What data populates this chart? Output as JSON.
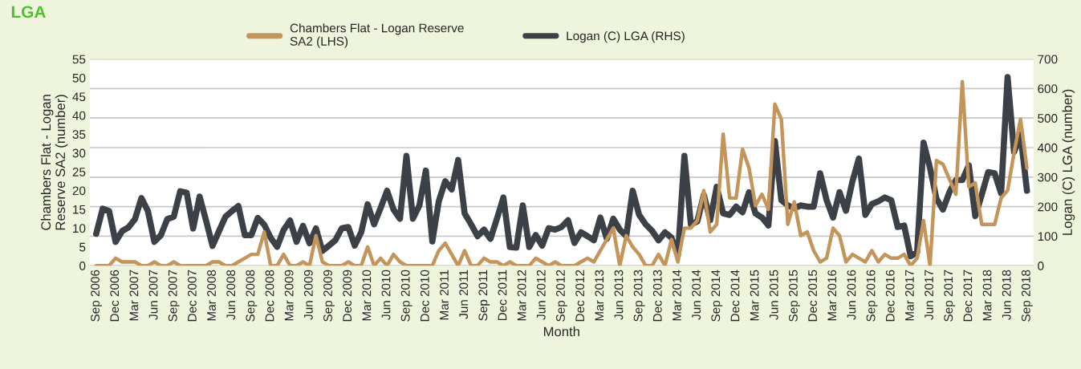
{
  "chart_data": {
    "type": "line",
    "title": "LGA",
    "xlabel": "Month",
    "ylabel": "Chambers Flat - Logan\nReserve SA2 (number)",
    "y2label": "Logan (C) LGA (number)",
    "categories": [
      "Sep 2006",
      null,
      null,
      "Dec 2006",
      null,
      null,
      "Mar 2007",
      null,
      null,
      "Jun 2007",
      null,
      null,
      "Sep 2007",
      null,
      null,
      "Dec 2007",
      null,
      null,
      "Mar 2008",
      null,
      null,
      "Jun 2008",
      null,
      null,
      "Sep 2008",
      null,
      null,
      "Dec 2008",
      null,
      null,
      "Mar 2009",
      null,
      null,
      "Jun 2009",
      null,
      null,
      "Sep 2009",
      null,
      null,
      "Dec 2009",
      null,
      null,
      "Mar 2010",
      null,
      null,
      "Jun 2010",
      null,
      null,
      "Sep 2010",
      null,
      null,
      "Dec 2010",
      null,
      null,
      "Mar 2011",
      null,
      null,
      "Jun 2011",
      null,
      null,
      "Sep 2011",
      null,
      null,
      "Dec 2011",
      null,
      null,
      "Mar 2012",
      null,
      null,
      "Jun 2012",
      null,
      null,
      "Sep 2012",
      null,
      null,
      "Dec 2012",
      null,
      null,
      "Mar 2013",
      null,
      null,
      "Jun 2013",
      null,
      null,
      "Sep 2013",
      null,
      null,
      "Dec 2013",
      null,
      null,
      "Mar 2014",
      null,
      null,
      "Jun 2014",
      null,
      null,
      "Sep 2014",
      null,
      null,
      "Dec 2014",
      null,
      null,
      "Mar 2015",
      null,
      null,
      "Jun 2015",
      null,
      null,
      "Sep 2015",
      null,
      null,
      "Dec 2015",
      null,
      null,
      "Mar 2016",
      null,
      null,
      "Jun 2016",
      null,
      null,
      "Sep 2016",
      null,
      null,
      "Dec 2016",
      null,
      null,
      "Mar 2017",
      null,
      null,
      "Jun 2017",
      null,
      null,
      "Sep 2017",
      null,
      null,
      "Dec 2017",
      null,
      null,
      "Mar 2018",
      null,
      null,
      "Jun 2018",
      null,
      null,
      "Sep 2018"
    ],
    "series": [
      {
        "name": "Chambers Flat - Logan Reserve\nSA2 (LHS)",
        "color": "#c4955a",
        "values": [
          0,
          0,
          0,
          2,
          1,
          1,
          1,
          0,
          0,
          1,
          0,
          0,
          1,
          0,
          0,
          0,
          0,
          0,
          1,
          1,
          0,
          0,
          1,
          2,
          3,
          3,
          9,
          0,
          0,
          3,
          0,
          0,
          1,
          0,
          8,
          1,
          0,
          0,
          0,
          1,
          0,
          0,
          5,
          0,
          2,
          0,
          3,
          1,
          0,
          0,
          0,
          0,
          0,
          4,
          6,
          3,
          0,
          4,
          0,
          0,
          2,
          1,
          1,
          0,
          1,
          0,
          0,
          0,
          2,
          1,
          0,
          1,
          0,
          0,
          0,
          1,
          2,
          1,
          4,
          7,
          10,
          0,
          8,
          5,
          3,
          0,
          0,
          3,
          0,
          7,
          1,
          10,
          10,
          12,
          20,
          9,
          11,
          35,
          18,
          18,
          31,
          26,
          16,
          19,
          15,
          43,
          39,
          11,
          17,
          8,
          9,
          4,
          1,
          2,
          10,
          8,
          1,
          3,
          2,
          1,
          4,
          1,
          3,
          2,
          2,
          3,
          0,
          2,
          12,
          0,
          28,
          27,
          23,
          19,
          49,
          21,
          22,
          11,
          11,
          11,
          18,
          20,
          30,
          39,
          26
        ]
      },
      {
        "name": "Logan (C) LGA (RHS)",
        "color": "#3c4047",
        "axis": "y2",
        "values": [
          108,
          193,
          185,
          81,
          117,
          130,
          158,
          229,
          185,
          81,
          103,
          158,
          166,
          252,
          247,
          126,
          234,
          153,
          67,
          117,
          166,
          185,
          202,
          103,
          103,
          162,
          139,
          94,
          64,
          121,
          153,
          81,
          135,
          76,
          126,
          50,
          68,
          86,
          127,
          131,
          68,
          113,
          208,
          140,
          195,
          254,
          190,
          159,
          372,
          159,
          204,
          322,
          82,
          218,
          286,
          258,
          358,
          177,
          140,
          100,
          122,
          91,
          159,
          231,
          63,
          61,
          204,
          63,
          104,
          68,
          127,
          122,
          131,
          154,
          77,
          113,
          100,
          86,
          163,
          91,
          159,
          122,
          100,
          254,
          172,
          140,
          118,
          86,
          113,
          95,
          36,
          372,
          140,
          150,
          240,
          154,
          267,
          177,
          172,
          200,
          181,
          249,
          177,
          163,
          136,
          422,
          222,
          204,
          195,
          204,
          200,
          200,
          313,
          222,
          163,
          249,
          186,
          286,
          363,
          172,
          209,
          218,
          231,
          222,
          131,
          136,
          32,
          45,
          417,
          331,
          227,
          190,
          249,
          290,
          290,
          340,
          168,
          240,
          317,
          313,
          245,
          639,
          385,
          444,
          254
        ]
      }
    ],
    "ylim": [
      0,
      55
    ],
    "yticks": [
      0,
      5,
      10,
      15,
      20,
      25,
      30,
      35,
      40,
      45,
      50,
      55
    ],
    "y2lim": [
      0,
      700
    ],
    "y2ticks": [
      0,
      100,
      200,
      300,
      400,
      500,
      600,
      700
    ],
    "grid": "y",
    "legend": "top",
    "marker": "none",
    "line_style": "solid"
  }
}
